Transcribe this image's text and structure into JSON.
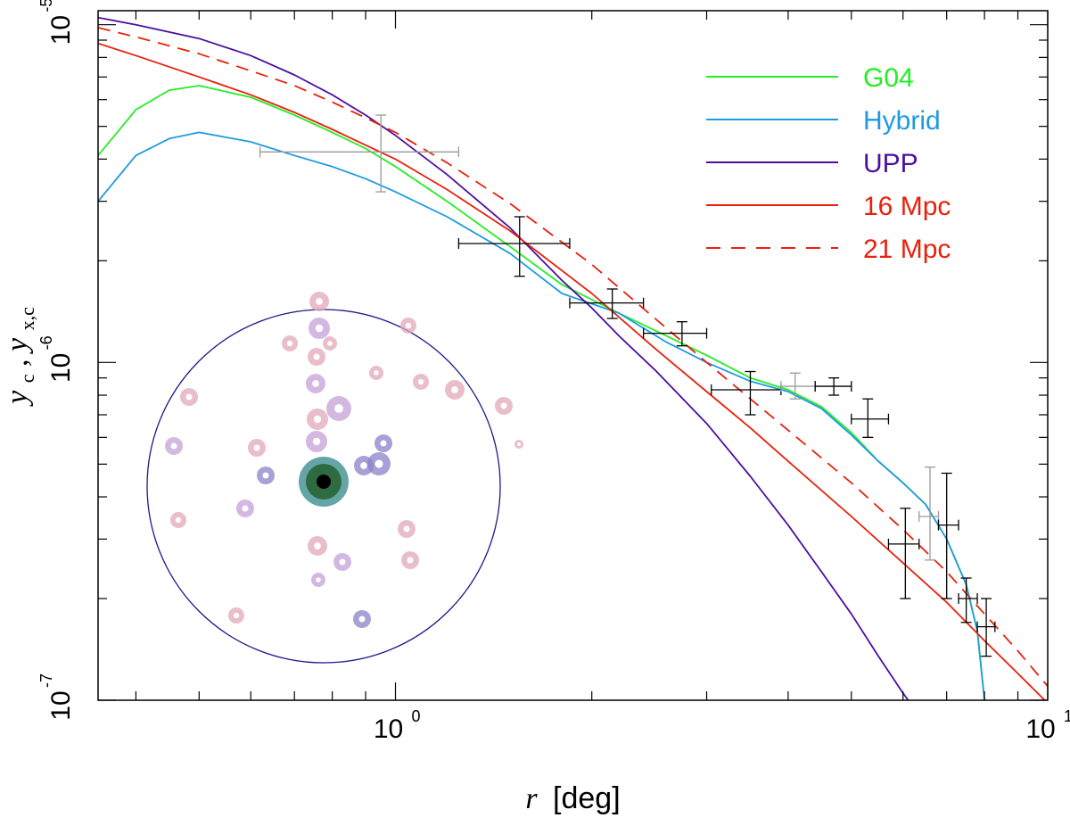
{
  "chart_data": {
    "type": "line",
    "xscale": "log",
    "yscale": "log",
    "xlim": [
      0.35,
      10
    ],
    "ylim": [
      1e-07,
      1.1e-05
    ],
    "xlabel_italic": "r",
    "xlabel_rest": "[deg]",
    "ylabel": "y_c, y_x,c",
    "ylabel_parts": {
      "y1": "y",
      "sub1": "c",
      "sep": ", ",
      "y2": "y",
      "sub2": "x,c"
    },
    "x_ticks": [
      {
        "base": "10",
        "exp": "0",
        "value": 1
      },
      {
        "base": "10",
        "exp": "1",
        "value": 10
      }
    ],
    "y_ticks": [
      {
        "base": "10",
        "exp": "-7",
        "value": 1e-07
      },
      {
        "base": "10",
        "exp": "-6",
        "value": 1e-06
      },
      {
        "base": "10",
        "exp": "-5",
        "value": 1e-05
      }
    ],
    "legend_position": "top-right",
    "series": [
      {
        "name": "G04",
        "color": "#22ee22",
        "dash": "solid",
        "x": [
          0.35,
          0.4,
          0.45,
          0.5,
          0.6,
          0.7,
          0.8,
          0.9,
          1.0,
          1.2,
          1.5,
          1.8,
          2.2,
          2.6,
          3.0,
          3.5,
          4.0,
          4.5,
          5.0,
          5.5,
          6.0,
          6.5,
          7.0,
          7.5,
          7.8,
          8.0
        ],
        "y": [
          4.1e-06,
          5.6e-06,
          6.4e-06,
          6.6e-06,
          6.1e-06,
          5.4e-06,
          4.8e-06,
          4.3e-06,
          3.8e-06,
          3e-06,
          2.2e-06,
          1.7e-06,
          1.4e-06,
          1.2e-06,
          1.05e-06,
          9e-07,
          8.3e-07,
          7.4e-07,
          6.2e-07,
          5.1e-07,
          4.4e-07,
          3.8e-07,
          3e-07,
          2.2e-07,
          1.6e-07,
          1e-07
        ]
      },
      {
        "name": "Hybrid",
        "color": "#1e9be0",
        "dash": "solid",
        "x": [
          0.35,
          0.4,
          0.45,
          0.5,
          0.6,
          0.7,
          0.8,
          0.9,
          1.0,
          1.2,
          1.5,
          1.8,
          2.2,
          2.6,
          3.0,
          3.5,
          4.0,
          4.5,
          5.0,
          5.5,
          6.0,
          6.5,
          7.0,
          7.5,
          7.8,
          8.0
        ],
        "y": [
          3e-06,
          4.1e-06,
          4.6e-06,
          4.8e-06,
          4.5e-06,
          4.1e-06,
          3.8e-06,
          3.5e-06,
          3.2e-06,
          2.7e-06,
          2.1e-06,
          1.6e-06,
          1.4e-06,
          1.15e-06,
          1e-06,
          8.8e-07,
          8.2e-07,
          7.3e-07,
          6.1e-07,
          5.1e-07,
          4.4e-07,
          3.8e-07,
          3e-07,
          2.2e-07,
          1.6e-07,
          1e-07
        ]
      },
      {
        "name": "UPP",
        "color": "#4b0fa0",
        "dash": "solid",
        "x": [
          0.35,
          0.4,
          0.5,
          0.6,
          0.7,
          0.8,
          0.9,
          1.0,
          1.2,
          1.5,
          1.8,
          2.0,
          2.2,
          2.5,
          3.0,
          3.5,
          4.0,
          4.5,
          5.0,
          5.5,
          6.0,
          6.5
        ],
        "y": [
          1.05e-05,
          1e-05,
          9.1e-06,
          8.1e-06,
          7.1e-06,
          6.2e-06,
          5.4e-06,
          4.7e-06,
          3.6e-06,
          2.5e-06,
          1.75e-06,
          1.45e-06,
          1.2e-06,
          9.5e-07,
          6.6e-07,
          4.6e-07,
          3.3e-07,
          2.4e-07,
          1.8e-07,
          1.35e-07,
          1.05e-07,
          8.5e-08
        ]
      },
      {
        "name": "16 Mpc",
        "color": "#e8200c",
        "dash": "solid",
        "x": [
          0.35,
          0.4,
          0.5,
          0.6,
          0.7,
          0.8,
          0.9,
          1.0,
          1.2,
          1.5,
          2.0,
          2.5,
          3.0,
          3.5,
          4.0,
          5.0,
          6.0,
          7.0,
          8.0,
          9.0,
          10.0
        ],
        "y": [
          8.8e-06,
          8.1e-06,
          7e-06,
          6.2e-06,
          5.5e-06,
          4.9e-06,
          4.4e-06,
          4e-06,
          3.25e-06,
          2.45e-06,
          1.6e-06,
          1.1e-06,
          8.2e-07,
          6.4e-07,
          5.1e-07,
          3.5e-07,
          2.55e-07,
          1.95e-07,
          1.5e-07,
          1.2e-07,
          9.8e-08
        ]
      },
      {
        "name": "21 Mpc",
        "color": "#e8200c",
        "dash": "dashed",
        "x": [
          0.35,
          0.4,
          0.5,
          0.6,
          0.7,
          0.8,
          0.9,
          1.0,
          1.2,
          1.5,
          2.0,
          2.5,
          3.0,
          3.5,
          4.0,
          5.0,
          6.0,
          7.0,
          8.0,
          9.0,
          10.0
        ],
        "y": [
          9.8e-06,
          9.2e-06,
          8.2e-06,
          7.3e-06,
          6.6e-06,
          5.9e-06,
          5.3e-06,
          4.8e-06,
          3.9e-06,
          2.95e-06,
          1.95e-06,
          1.35e-06,
          1e-06,
          7.8e-07,
          6.3e-07,
          4.4e-07,
          3.2e-07,
          2.4e-07,
          1.8e-07,
          1.4e-07,
          1.1e-07
        ]
      }
    ],
    "data_points": [
      {
        "x": 0.95,
        "y": 4.2e-06,
        "xerr": [
          0.62,
          1.25
        ],
        "yerr": [
          3.2e-06,
          5.4e-06
        ],
        "shade": "#9a9a9a"
      },
      {
        "x": 1.55,
        "y": 2.25e-06,
        "xerr": [
          1.25,
          1.85
        ],
        "yerr": [
          1.8e-06,
          2.7e-06
        ],
        "shade": "#000000"
      },
      {
        "x": 2.15,
        "y": 1.5e-06,
        "xerr": [
          1.85,
          2.4
        ],
        "yerr": [
          1.35e-06,
          1.65e-06
        ],
        "shade": "#000000"
      },
      {
        "x": 2.75,
        "y": 1.22e-06,
        "xerr": [
          2.4,
          3.0
        ],
        "yerr": [
          1.12e-06,
          1.32e-06
        ],
        "shade": "#000000"
      },
      {
        "x": 3.5,
        "y": 8.3e-07,
        "xerr": [
          3.05,
          3.9
        ],
        "yerr": [
          7e-07,
          9.4e-07
        ],
        "shade": "#000000"
      },
      {
        "x": 4.1,
        "y": 8.5e-07,
        "xerr": [
          3.9,
          4.4
        ],
        "yerr": [
          7.8e-07,
          9.3e-07
        ],
        "shade": "#9a9a9a"
      },
      {
        "x": 4.7,
        "y": 8.5e-07,
        "xerr": [
          4.4,
          5.0
        ],
        "yerr": [
          8e-07,
          9e-07
        ],
        "shade": "#000000"
      },
      {
        "x": 5.3,
        "y": 6.8e-07,
        "xerr": [
          5.0,
          5.7
        ],
        "yerr": [
          6e-07,
          7.8e-07
        ],
        "shade": "#000000"
      },
      {
        "x": 6.05,
        "y": 2.9e-07,
        "xerr": [
          5.7,
          6.35
        ],
        "yerr": [
          2e-07,
          3.7e-07
        ],
        "shade": "#000000"
      },
      {
        "x": 6.6,
        "y": 3.5e-07,
        "xerr": [
          6.35,
          6.8
        ],
        "yerr": [
          2.6e-07,
          4.9e-07
        ],
        "shade": "#9a9a9a"
      },
      {
        "x": 7.0,
        "y": 3.3e-07,
        "xerr": [
          6.8,
          7.3
        ],
        "yerr": [
          2e-07,
          4.7e-07
        ],
        "shade": "#000000"
      },
      {
        "x": 7.5,
        "y": 2e-07,
        "xerr": [
          7.3,
          7.8
        ],
        "yerr": [
          1.7e-07,
          2.3e-07
        ],
        "shade": "#000000"
      },
      {
        "x": 8.05,
        "y": 1.65e-07,
        "xerr": [
          7.8,
          8.3
        ],
        "yerr": [
          1.35e-07,
          2e-07
        ],
        "shade": "#000000"
      }
    ],
    "inset": {
      "description_kind": "sky map",
      "circle_color": "#1a1a8c",
      "center_colors": [
        "#000000",
        "#2e6b40",
        "#3f8f8f"
      ],
      "blob_colors": [
        "#e2a8b8",
        "#c4a2d8",
        "#8a82c8"
      ]
    }
  }
}
